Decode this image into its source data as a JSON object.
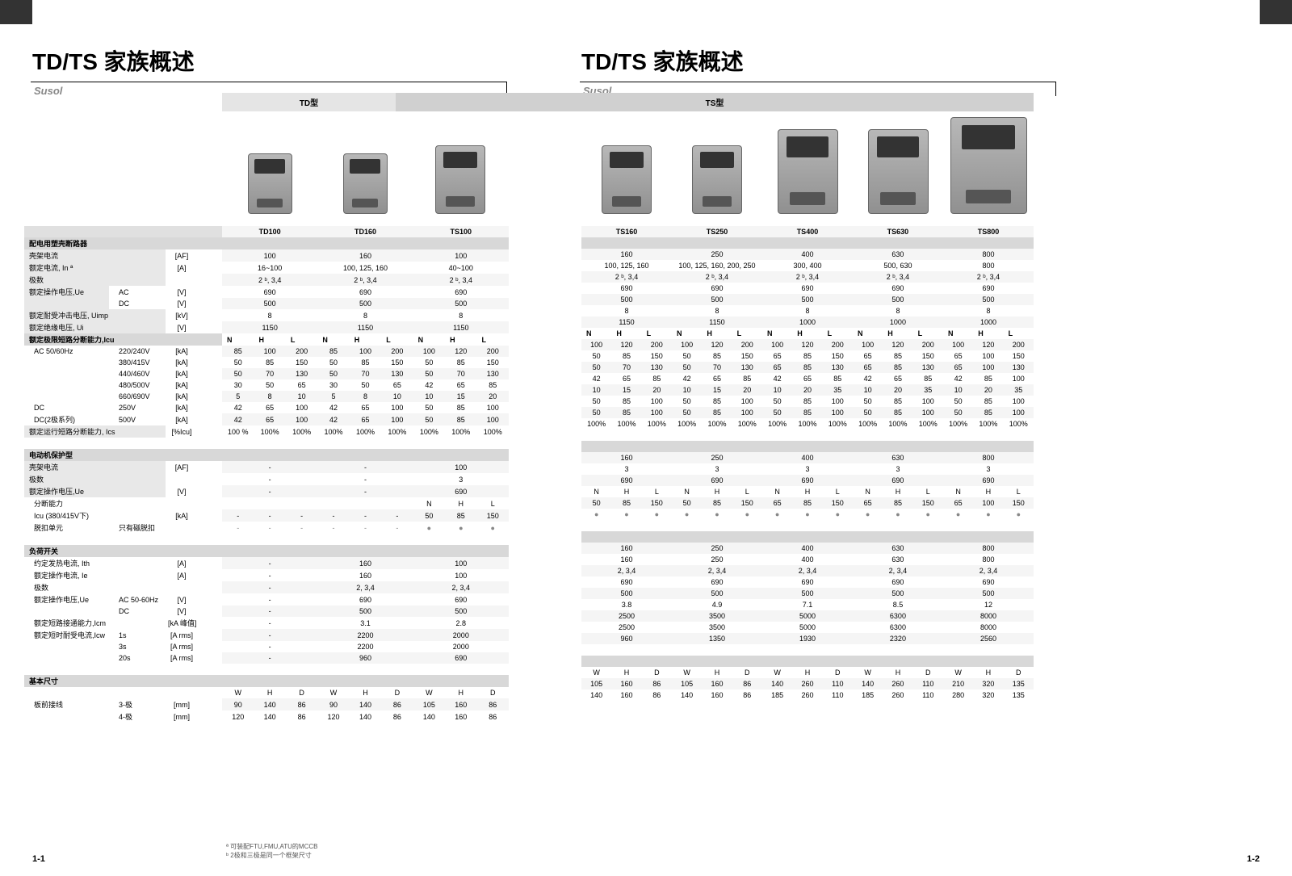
{
  "title_left": "TD/TS 家族概述",
  "title_right": "TD/TS 家族概述",
  "brand": "Susol",
  "td_label": "TD型",
  "ts_label": "TS型",
  "models_left": [
    "TD100",
    "TD160",
    "TS100"
  ],
  "models_right": [
    "TS160",
    "TS250",
    "TS400",
    "TS630",
    "TS800"
  ],
  "spec_rows": [
    {
      "label": "配电用塑壳断路器",
      "unit": "",
      "section": true
    },
    {
      "label": "壳架电流",
      "unit": "[AF]",
      "left": [
        "100",
        "160",
        "100"
      ],
      "right": [
        "160",
        "250",
        "400",
        "630",
        "800"
      ]
    },
    {
      "label": "额定电流, In ª",
      "unit": "[A]",
      "left": [
        "16~100",
        "100, 125, 160",
        "40~100"
      ],
      "right": [
        "100, 125, 160",
        "100, 125, 160, 200, 250",
        "300, 400",
        "500, 630",
        "800"
      ]
    },
    {
      "label": "极数",
      "unit": "",
      "left": [
        "2 ᵇ, 3,4",
        "2 ᵇ, 3,4",
        "2 ᵇ, 3,4"
      ],
      "right": [
        "2 ᵇ, 3,4",
        "2 ᵇ, 3,4",
        "2 ᵇ, 3,4",
        "2 ᵇ, 3,4",
        "2 ᵇ, 3,4"
      ]
    },
    {
      "label": "额定操作电压,Ue",
      "sub1": "AC",
      "unit": "[V]",
      "left": [
        "690",
        "690",
        "690"
      ],
      "right": [
        "690",
        "690",
        "690",
        "690",
        "690"
      ]
    },
    {
      "label": "",
      "sub1": "DC",
      "unit": "[V]",
      "left": [
        "500",
        "500",
        "500"
      ],
      "right": [
        "500",
        "500",
        "500",
        "500",
        "500"
      ]
    },
    {
      "label": "额定耐受冲击电压, Uimp",
      "unit": "[kV]",
      "left": [
        "8",
        "8",
        "8"
      ],
      "right": [
        "8",
        "8",
        "8",
        "8",
        "8"
      ]
    },
    {
      "label": "额定绝缘电压, Ui",
      "unit": "[V]",
      "left": [
        "1150",
        "1150",
        "1150"
      ],
      "right": [
        "1150",
        "1150",
        "1000",
        "1000",
        "1000"
      ]
    }
  ],
  "nhl_header": {
    "cols": [
      "N",
      "H",
      "L"
    ]
  },
  "icu_label": "额定极限短路分断能力,Icu",
  "icu_rows": [
    {
      "label": "AC 50/60Hz",
      "sub": "220/240V",
      "unit": "[kA]",
      "left": [
        [
          "85",
          "100",
          "200"
        ],
        [
          "85",
          "100",
          "200"
        ],
        [
          "100",
          "120",
          "200"
        ]
      ],
      "right": [
        [
          "100",
          "120",
          "200"
        ],
        [
          "100",
          "120",
          "200"
        ],
        [
          "100",
          "120",
          "200"
        ],
        [
          "100",
          "120",
          "200"
        ],
        [
          "100",
          "120",
          "200"
        ]
      ]
    },
    {
      "label": "",
      "sub": "380/415V",
      "unit": "[kA]",
      "left": [
        [
          "50",
          "85",
          "150"
        ],
        [
          "50",
          "85",
          "150"
        ],
        [
          "50",
          "85",
          "150"
        ]
      ],
      "right": [
        [
          "50",
          "85",
          "150"
        ],
        [
          "50",
          "85",
          "150"
        ],
        [
          "65",
          "85",
          "150"
        ],
        [
          "65",
          "85",
          "150"
        ],
        [
          "65",
          "100",
          "150"
        ]
      ]
    },
    {
      "label": "",
      "sub": "440/460V",
      "unit": "[kA]",
      "left": [
        [
          "50",
          "70",
          "130"
        ],
        [
          "50",
          "70",
          "130"
        ],
        [
          "50",
          "70",
          "130"
        ]
      ],
      "right": [
        [
          "50",
          "70",
          "130"
        ],
        [
          "50",
          "70",
          "130"
        ],
        [
          "65",
          "85",
          "130"
        ],
        [
          "65",
          "85",
          "130"
        ],
        [
          "65",
          "100",
          "130"
        ]
      ]
    },
    {
      "label": "",
      "sub": "480/500V",
      "unit": "[kA]",
      "left": [
        [
          "30",
          "50",
          "65"
        ],
        [
          "30",
          "50",
          "65"
        ],
        [
          "42",
          "65",
          "85"
        ]
      ],
      "right": [
        [
          "42",
          "65",
          "85"
        ],
        [
          "42",
          "65",
          "85"
        ],
        [
          "42",
          "65",
          "85"
        ],
        [
          "42",
          "65",
          "85"
        ],
        [
          "42",
          "85",
          "100"
        ]
      ]
    },
    {
      "label": "",
      "sub": "660/690V",
      "unit": "[kA]",
      "left": [
        [
          "5",
          "8",
          "10"
        ],
        [
          "5",
          "8",
          "10"
        ],
        [
          "10",
          "15",
          "20"
        ]
      ],
      "right": [
        [
          "10",
          "15",
          "20"
        ],
        [
          "10",
          "15",
          "20"
        ],
        [
          "10",
          "20",
          "35"
        ],
        [
          "10",
          "20",
          "35"
        ],
        [
          "10",
          "20",
          "35"
        ]
      ]
    },
    {
      "label": "DC",
      "sub": "250V",
      "unit": "[kA]",
      "left": [
        [
          "42",
          "65",
          "100"
        ],
        [
          "42",
          "65",
          "100"
        ],
        [
          "50",
          "85",
          "100"
        ]
      ],
      "right": [
        [
          "50",
          "85",
          "100"
        ],
        [
          "50",
          "85",
          "100"
        ],
        [
          "50",
          "85",
          "100"
        ],
        [
          "50",
          "85",
          "100"
        ],
        [
          "50",
          "85",
          "100"
        ]
      ]
    },
    {
      "label": "DC(2极系列)",
      "sub": "500V",
      "unit": "[kA]",
      "left": [
        [
          "42",
          "65",
          "100"
        ],
        [
          "42",
          "65",
          "100"
        ],
        [
          "50",
          "85",
          "100"
        ]
      ],
      "right": [
        [
          "50",
          "85",
          "100"
        ],
        [
          "50",
          "85",
          "100"
        ],
        [
          "50",
          "85",
          "100"
        ],
        [
          "50",
          "85",
          "100"
        ],
        [
          "50",
          "85",
          "100"
        ]
      ]
    }
  ],
  "ics_label": "额定运行短路分断能力, Ics",
  "ics_unit": "[%Icu]",
  "ics_left": [
    [
      "100 %",
      "100%",
      "100%"
    ],
    [
      "100%",
      "100%",
      "100%"
    ],
    [
      "100%",
      "100%",
      "100%"
    ]
  ],
  "ics_right": [
    [
      "100%",
      "100%",
      "100%"
    ],
    [
      "100%",
      "100%",
      "100%"
    ],
    [
      "100%",
      "100%",
      "100%"
    ],
    [
      "100%",
      "100%",
      "100%"
    ],
    [
      "100%",
      "100%",
      "100%"
    ]
  ],
  "motor_section": "电动机保护型",
  "motor_rows": [
    {
      "label": "壳架电流",
      "unit": "[AF]",
      "left": [
        "-",
        "-",
        "100"
      ],
      "right": [
        "160",
        "250",
        "400",
        "630",
        "800"
      ]
    },
    {
      "label": "极数",
      "unit": "",
      "left": [
        "-",
        "-",
        "3"
      ],
      "right": [
        "3",
        "3",
        "3",
        "3",
        "3"
      ]
    },
    {
      "label": "额定操作电压,Ue",
      "unit": "[V]",
      "left": [
        "-",
        "-",
        "690"
      ],
      "right": [
        "690",
        "690",
        "690",
        "690",
        "690"
      ]
    }
  ],
  "motor_cap_label": "分断能力",
  "motor_icu_row": {
    "label": "Icu  (380/415V下)",
    "unit": "[kA]",
    "left": [
      [
        "-",
        "-",
        "-"
      ],
      [
        "-",
        "-",
        "-"
      ],
      [
        "50",
        "85",
        "150"
      ]
    ],
    "right": [
      [
        "50",
        "85",
        "150"
      ],
      [
        "50",
        "85",
        "150"
      ],
      [
        "65",
        "85",
        "150"
      ],
      [
        "65",
        "85",
        "150"
      ],
      [
        "65",
        "100",
        "150"
      ]
    ]
  },
  "trip_label": "脱扣单元",
  "trip_sub": "只有磁脱扣",
  "switch_section": "负荷开关",
  "switch_rows": [
    {
      "label": "约定发热电流, Ith",
      "unit": "[A]",
      "left": [
        "-",
        "160",
        "100"
      ],
      "right": [
        "160",
        "250",
        "400",
        "630",
        "800"
      ]
    },
    {
      "label": "额定操作电流, Ie",
      "unit": "[A]",
      "left": [
        "-",
        "160",
        "100"
      ],
      "right": [
        "160",
        "250",
        "400",
        "630",
        "800"
      ]
    },
    {
      "label": "极数",
      "unit": "",
      "left": [
        "-",
        "2, 3,4",
        "2, 3,4"
      ],
      "right": [
        "2, 3,4",
        "2, 3,4",
        "2, 3,4",
        "2, 3,4",
        "2, 3,4"
      ]
    },
    {
      "label": "额定操作电压,Ue",
      "sub": "AC 50-60Hz",
      "unit": "[V]",
      "left": [
        "-",
        "690",
        "690"
      ],
      "right": [
        "690",
        "690",
        "690",
        "690",
        "690"
      ]
    },
    {
      "label": "",
      "sub": "DC",
      "unit": "[V]",
      "left": [
        "-",
        "500",
        "500"
      ],
      "right": [
        "500",
        "500",
        "500",
        "500",
        "500"
      ]
    },
    {
      "label": "额定短路接通能力,Icm",
      "unit": "[kA 峰值]",
      "left": [
        "-",
        "3.1",
        "2.8"
      ],
      "right": [
        "3.8",
        "4.9",
        "7.1",
        "8.5",
        "12"
      ]
    },
    {
      "label": "额定短时耐受电流,Icw",
      "sub": "1s",
      "unit": "[A rms]",
      "left": [
        "-",
        "2200",
        "2000"
      ],
      "right": [
        "2500",
        "3500",
        "5000",
        "6300",
        "8000"
      ]
    },
    {
      "label": "",
      "sub": "3s",
      "unit": "[A rms]",
      "left": [
        "-",
        "2200",
        "2000"
      ],
      "right": [
        "2500",
        "3500",
        "5000",
        "6300",
        "8000"
      ]
    },
    {
      "label": "",
      "sub": "20s",
      "unit": "[A rms]",
      "left": [
        "-",
        "960",
        "690"
      ],
      "right": [
        "960",
        "1350",
        "1930",
        "2320",
        "2560"
      ]
    }
  ],
  "dim_section": "基本尺寸",
  "dim_label": "板前接线",
  "whd": [
    "W",
    "H",
    "D"
  ],
  "dim_rows": [
    {
      "sub": "3-极",
      "unit": "[mm]",
      "left": [
        [
          "90",
          "140",
          "86"
        ],
        [
          "90",
          "140",
          "86"
        ],
        [
          "105",
          "160",
          "86"
        ]
      ],
      "right": [
        [
          "105",
          "160",
          "86"
        ],
        [
          "105",
          "160",
          "86"
        ],
        [
          "140",
          "260",
          "110"
        ],
        [
          "140",
          "260",
          "110"
        ],
        [
          "210",
          "320",
          "135"
        ]
      ]
    },
    {
      "sub": "4-极",
      "unit": "[mm]",
      "left": [
        [
          "120",
          "140",
          "86"
        ],
        [
          "120",
          "140",
          "86"
        ],
        [
          "140",
          "160",
          "86"
        ]
      ],
      "right": [
        [
          "140",
          "160",
          "86"
        ],
        [
          "140",
          "160",
          "86"
        ],
        [
          "185",
          "260",
          "110"
        ],
        [
          "185",
          "260",
          "110"
        ],
        [
          "280",
          "320",
          "135"
        ]
      ]
    }
  ],
  "footnote1": "ª 可装配FTU,FMU,ATU的MCCB",
  "footnote2": "ᵇ 2极和三极是同一个框架尺寸",
  "page_left": "1-1",
  "page_right": "1-2"
}
